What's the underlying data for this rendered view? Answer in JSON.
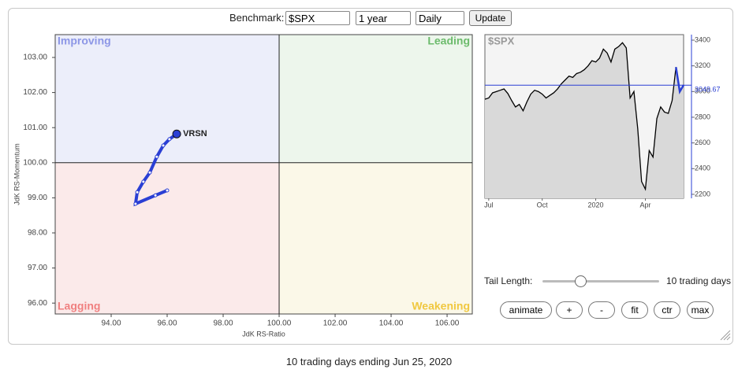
{
  "controls": {
    "benchmark_label": "Benchmark:",
    "benchmark": "$SPX",
    "period": "1 year",
    "frequency": "Daily",
    "update": "Update",
    "tail_length_label": "Tail Length:",
    "tail_length": "10 trading days",
    "buttons": [
      "animate",
      "+",
      "-",
      "fit",
      "ctr",
      "max"
    ]
  },
  "caption": "10 trading days ending Jun 25, 2020",
  "chart_data": [
    {
      "type": "line",
      "x_label": "JdK RS-Ratio",
      "y_label": "JdK RS-Momentum",
      "quadrants": [
        "Improving",
        "Leading",
        "Lagging",
        "Weakening"
      ],
      "center": 100,
      "xlim": [
        92.0,
        106.9
      ],
      "ylim": [
        95.69,
        103.65
      ],
      "xticks": [
        {
          "value": 94,
          "label": "94.00"
        },
        {
          "value": 96,
          "label": "96.00"
        },
        {
          "value": 98,
          "label": "98.00"
        },
        {
          "value": 100,
          "label": "100.00"
        },
        {
          "value": 102,
          "label": "102.00"
        },
        {
          "value": 104,
          "label": "104.00"
        },
        {
          "value": 106,
          "label": "106.00"
        }
      ],
      "yticks": [
        {
          "value": 96,
          "label": "96.00"
        },
        {
          "value": 97,
          "label": "97.00"
        },
        {
          "value": 98,
          "label": "98.00"
        },
        {
          "value": 99,
          "label": "99.00"
        },
        {
          "value": 100,
          "label": "100.00"
        },
        {
          "value": 101,
          "label": "101.00"
        },
        {
          "value": 102,
          "label": "102.00"
        },
        {
          "value": 103,
          "label": "103.00"
        }
      ],
      "series": [
        {
          "name": "VRSN",
          "color": "#2a3fd4",
          "x": [
            96.0,
            95.58,
            94.87,
            94.93,
            95.15,
            95.38,
            95.63,
            95.86,
            96.08,
            96.34
          ],
          "values": [
            99.21,
            99.07,
            98.83,
            99.16,
            99.46,
            99.72,
            100.17,
            100.49,
            100.67,
            100.82
          ]
        }
      ]
    },
    {
      "type": "area",
      "title": "$SPX",
      "color": "#000000",
      "tail_color": "#2a3fd4",
      "xlim": [
        0,
        52
      ],
      "xticks": [
        {
          "value": 1,
          "label": "Jul"
        },
        {
          "value": 15,
          "label": "Oct"
        },
        {
          "value": 29,
          "label": "2020"
        },
        {
          "value": 42,
          "label": "Apr"
        }
      ],
      "ylim": [
        2169,
        3443
      ],
      "yticks": [
        2200,
        2400,
        2600,
        2800,
        3000,
        3200,
        3400
      ],
      "last": {
        "value": 3049.67,
        "label": "3049.67"
      },
      "values": [
        2940,
        2950,
        2990,
        3000,
        3010,
        3020,
        2985,
        2930,
        2880,
        2900,
        2850,
        2920,
        2980,
        3010,
        3000,
        2980,
        2950,
        2970,
        2990,
        3020,
        3060,
        3090,
        3120,
        3110,
        3140,
        3150,
        3170,
        3200,
        3240,
        3230,
        3260,
        3330,
        3300,
        3230,
        3330,
        3350,
        3380,
        3340,
        2950,
        3000,
        2710,
        2300,
        2240,
        2540,
        2490,
        2790,
        2880,
        2840,
        2830,
        2930,
        3190,
        3000,
        3050
      ]
    }
  ]
}
